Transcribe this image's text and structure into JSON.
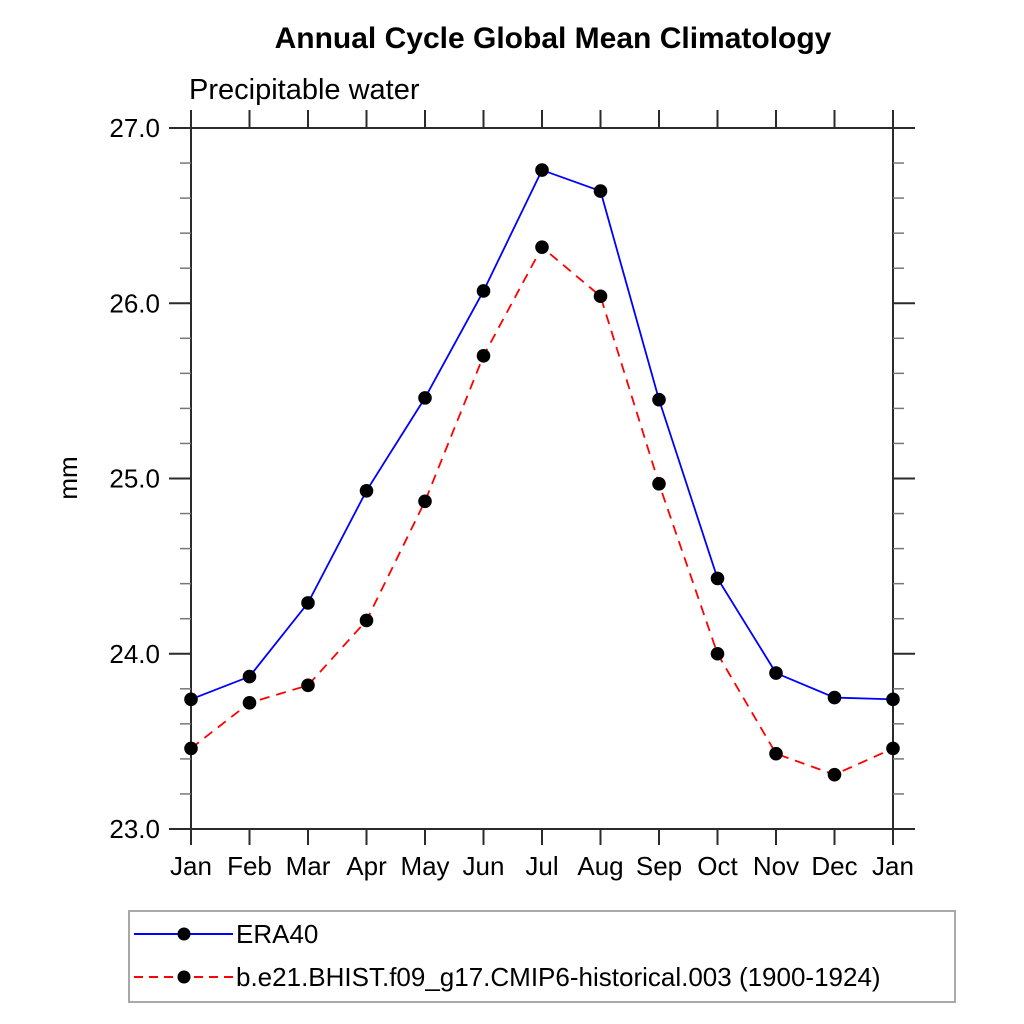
{
  "chart_data": {
    "type": "line",
    "title": "Annual Cycle Global Mean Climatology",
    "subtitle": "Precipitable water",
    "ylabel": "mm",
    "x": [
      "Jan",
      "Feb",
      "Mar",
      "Apr",
      "May",
      "Jun",
      "Jul",
      "Aug",
      "Sep",
      "Oct",
      "Nov",
      "Dec",
      "Jan"
    ],
    "ylim": [
      23.0,
      27.0
    ],
    "ytick_labels": [
      "23.0",
      "24.0",
      "25.0",
      "26.0",
      "27.0"
    ],
    "ytick_major_values": [
      23.0,
      24.0,
      25.0,
      26.0,
      27.0
    ],
    "ytick_minor_step": 0.2,
    "grid": false,
    "legend_position": "bottom",
    "axis_color": "#2b2b2b",
    "minor_tick_color": "#777777",
    "marker_color": "#000000",
    "series": [
      {
        "name": "ERA40",
        "color": "#0000ff",
        "dash": "solid",
        "marker": "filled-circle",
        "values": [
          23.74,
          23.87,
          24.29,
          24.93,
          25.46,
          26.07,
          26.76,
          26.64,
          25.45,
          24.43,
          23.89,
          23.75,
          23.74
        ]
      },
      {
        "name": "b.e21.BHIST.f09_g17.CMIP6-historical.003 (1900-1924)",
        "color": "#ff0000",
        "dash": "dashed",
        "marker": "filled-circle",
        "values": [
          23.46,
          23.72,
          23.82,
          24.19,
          24.87,
          25.7,
          26.32,
          26.04,
          24.97,
          24.0,
          23.43,
          23.31,
          23.46
        ]
      }
    ]
  }
}
